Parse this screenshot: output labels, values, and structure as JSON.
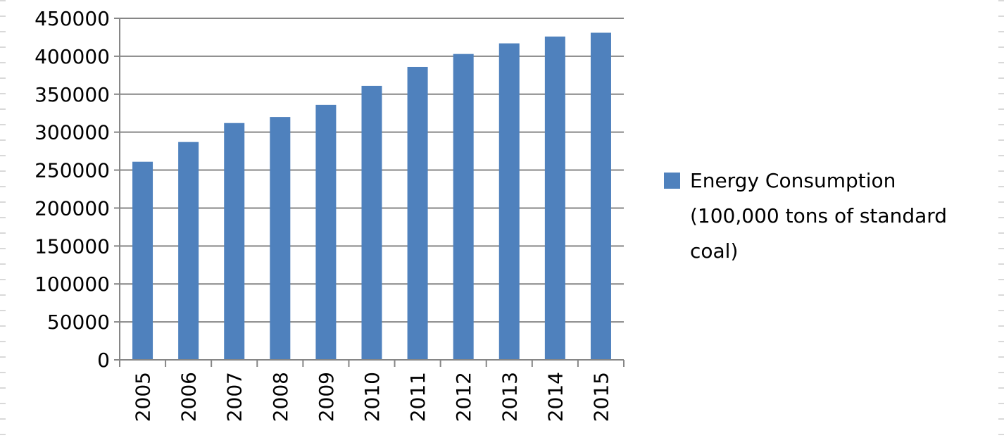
{
  "chart_data": {
    "type": "bar",
    "title": "",
    "xlabel": "",
    "ylabel": "",
    "categories": [
      "2005",
      "2006",
      "2007",
      "2008",
      "2009",
      "2010",
      "2011",
      "2012",
      "2013",
      "2014",
      "2015"
    ],
    "series": [
      {
        "name": "Energy Consumption (100,000 tons of standard coal)",
        "values": [
          261000,
          287000,
          312000,
          320000,
          336000,
          361000,
          386000,
          403000,
          417000,
          426000,
          431000
        ],
        "color": "#4f81bd"
      }
    ],
    "legend_lines": [
      "Energy Consumption",
      "(100,000 tons of standard",
      "coal)"
    ],
    "y_ticks": [
      0,
      50000,
      100000,
      150000,
      200000,
      250000,
      300000,
      350000,
      400000,
      450000
    ],
    "ylim": [
      0,
      450000
    ],
    "grid": true,
    "legend_position": "right"
  }
}
